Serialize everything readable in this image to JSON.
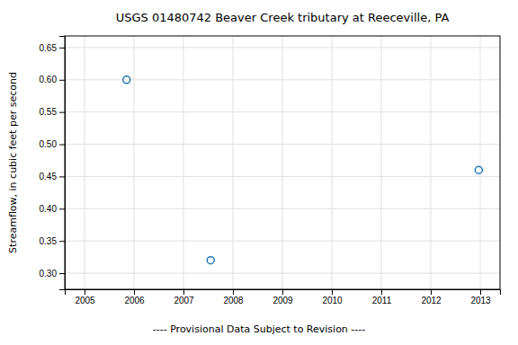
{
  "chart_data": {
    "type": "scatter",
    "title": "USGS 01480742 Beaver Creek tributary at Reeceville, PA",
    "ylabel": "Streamflow, in cubic feet per second",
    "annotation": "---- Provisional Data Subject to Revision ----",
    "x": [
      2005.85,
      2007.55,
      2012.97
    ],
    "values": [
      0.6,
      0.32,
      0.46
    ],
    "xlim": [
      2004.6,
      2013.4
    ],
    "ylim": [
      0.275,
      0.668
    ],
    "xticks": [
      2005,
      2006,
      2007,
      2008,
      2009,
      2010,
      2011,
      2012,
      2013
    ],
    "yticks": [
      {
        "value": 0.3,
        "label": "0.30"
      },
      0.35,
      {
        "value": 0.4,
        "label": "0.40"
      },
      0.45,
      {
        "value": 0.5,
        "label": "0.50"
      },
      0.55,
      {
        "value": 0.6,
        "label": "0.60"
      },
      0.65
    ],
    "grid": true
  }
}
